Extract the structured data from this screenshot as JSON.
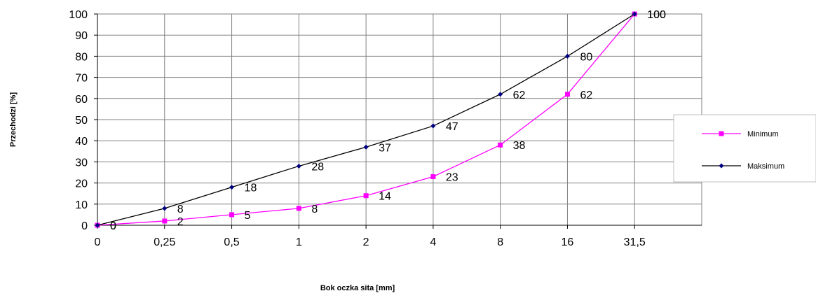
{
  "chart_data": {
    "type": "line",
    "categories": [
      "0",
      "0,25",
      "0,5",
      "1",
      "2",
      "4",
      "8",
      "16",
      "31,5"
    ],
    "xlabel": "Bok oczka sita [mm]",
    "ylabel": "Przechodzi [%]",
    "ylim": [
      0,
      100
    ],
    "y_ticks": [
      "0",
      "10",
      "20",
      "30",
      "40",
      "50",
      "60",
      "70",
      "80",
      "90",
      "100"
    ],
    "grid": true,
    "legend_position": "right",
    "series": [
      {
        "name": "Minimum",
        "color": "#ff00ff",
        "marker": "square",
        "values": [
          0,
          2,
          5,
          8,
          14,
          23,
          38,
          62,
          100
        ],
        "labels": [
          "0",
          "2",
          "5",
          "8",
          "14",
          "23",
          "38",
          "62",
          "100"
        ]
      },
      {
        "name": "Maksimum",
        "color": "#000080",
        "line_color": "#000000",
        "marker": "diamond",
        "values": [
          0,
          8,
          18,
          28,
          37,
          47,
          62,
          80,
          100
        ],
        "labels": [
          "0",
          "8",
          "18",
          "28",
          "37",
          "47",
          "62",
          "80",
          "100"
        ]
      }
    ]
  }
}
